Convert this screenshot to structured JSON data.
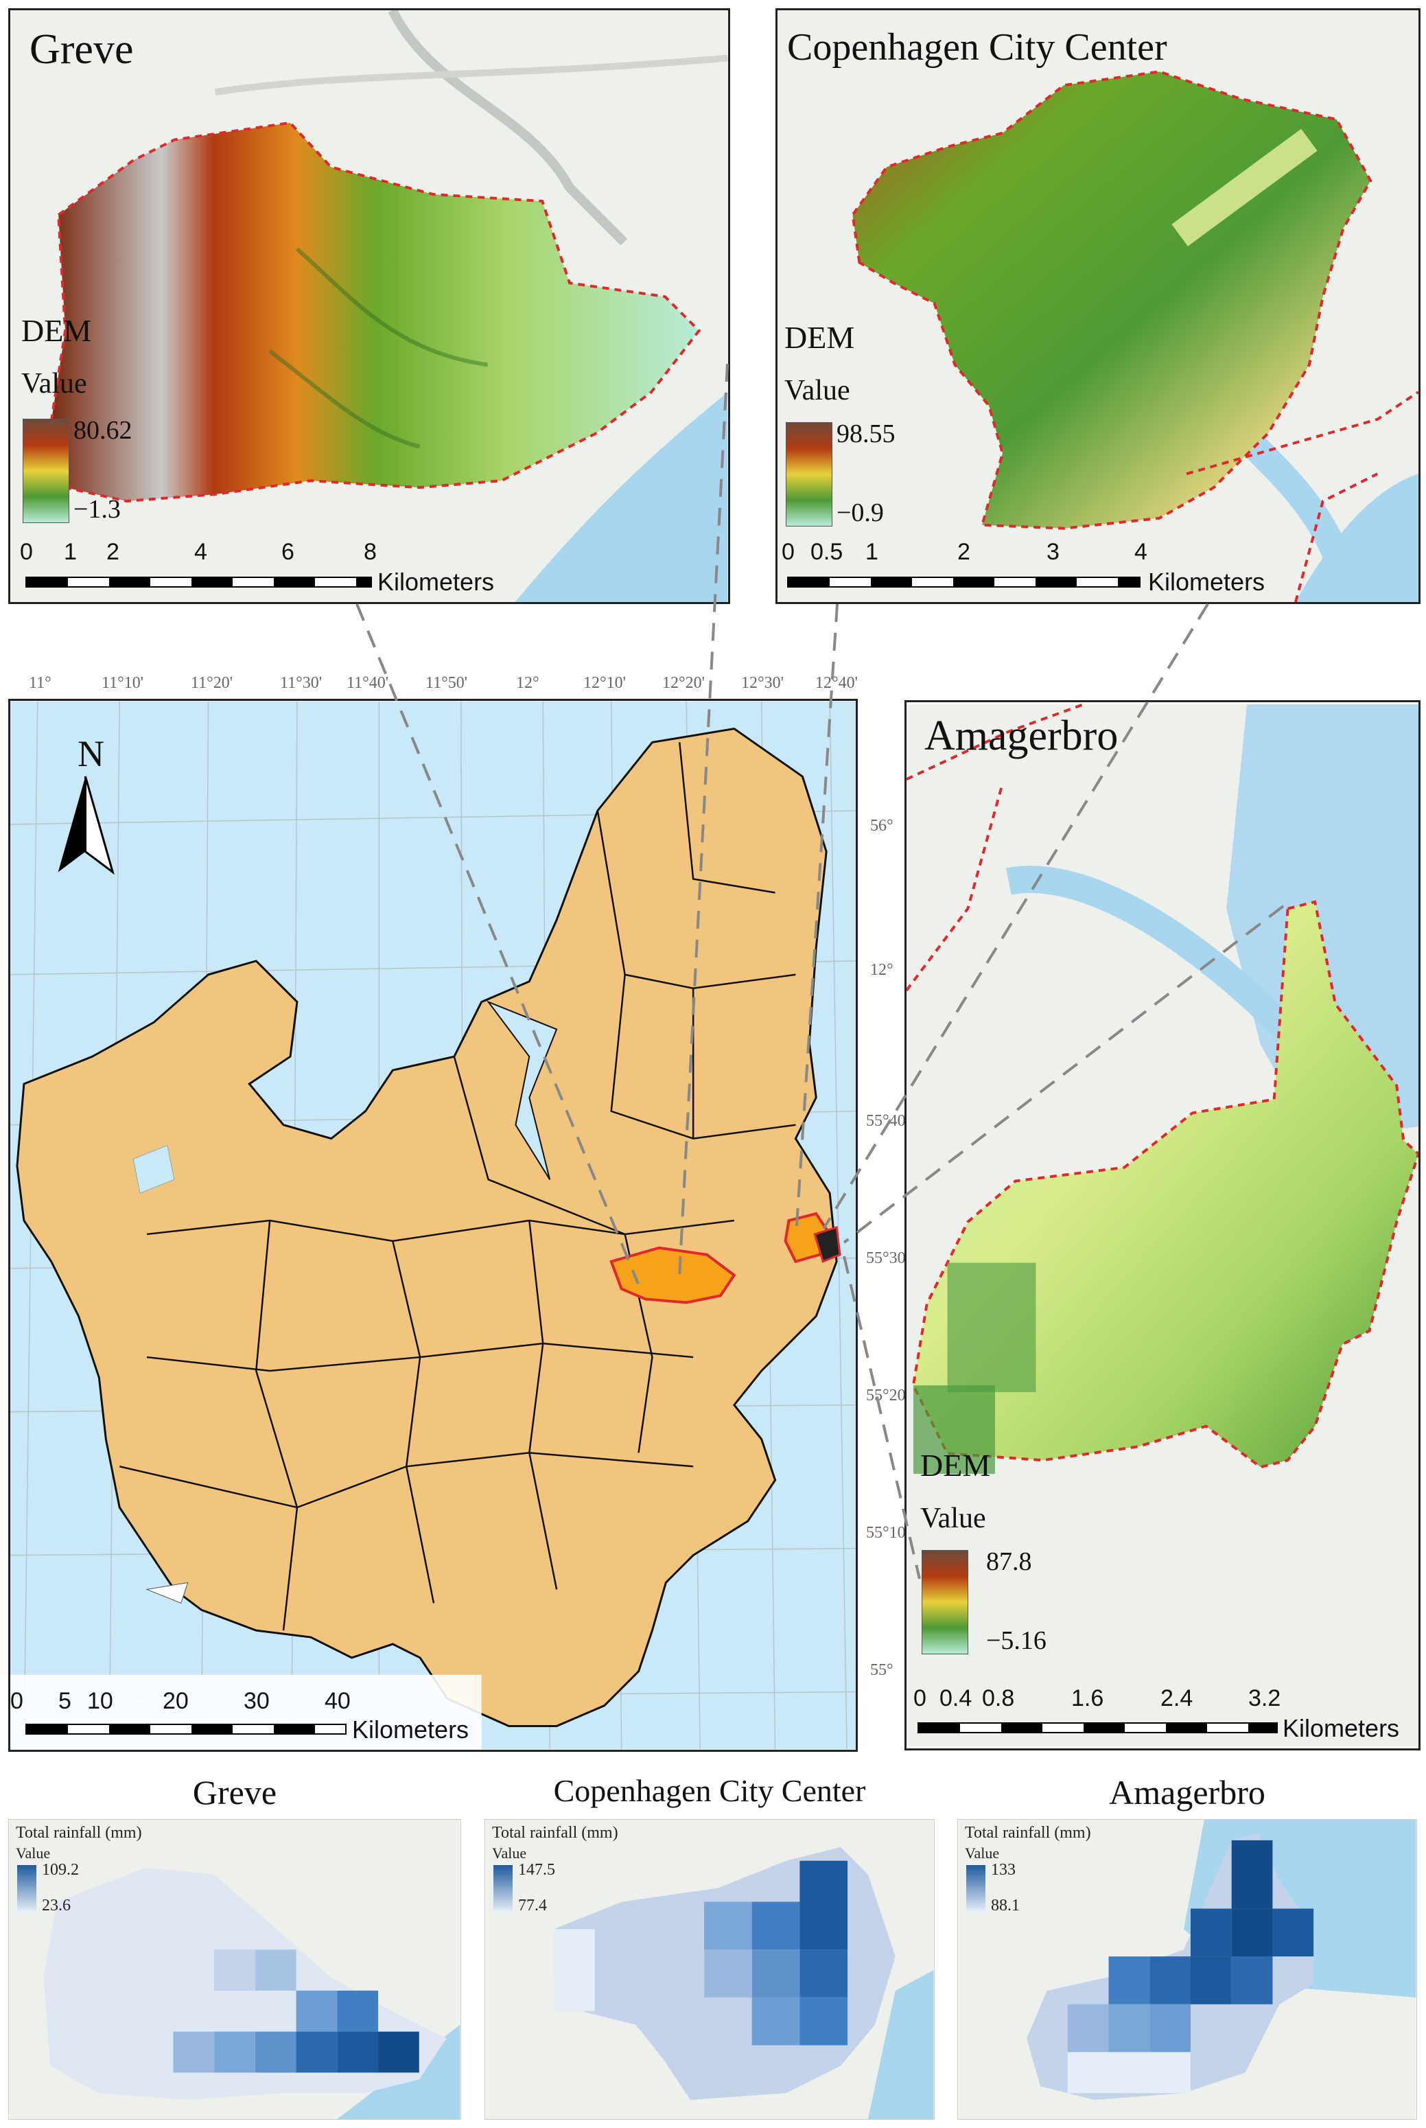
{
  "panels": {
    "greve": {
      "title": "Greve",
      "dem_label": "DEM",
      "value_label": "Value",
      "max": "80.62",
      "min": "−1.3",
      "scale_ticks": [
        "0",
        "1",
        "2",
        "4",
        "6",
        "8"
      ],
      "scale_unit": "Kilometers"
    },
    "copenhagen": {
      "title": "Copenhagen City Center",
      "dem_label": "DEM",
      "value_label": "Value",
      "max": "98.55",
      "min": "−0.9",
      "scale_ticks": [
        "0",
        "0.5",
        "1",
        "2",
        "3",
        "4"
      ],
      "scale_unit": "Kilometers"
    },
    "amagerbro": {
      "title": "Amagerbro",
      "dem_label": "DEM",
      "value_label": "Value",
      "max": "87.8",
      "min": "−5.16",
      "scale_ticks": [
        "0",
        "0.4",
        "0.8",
        "1.6",
        "2.4",
        "3.2"
      ],
      "scale_unit": "Kilometers"
    },
    "overview": {
      "north": "N",
      "scale_ticks": [
        "0",
        "5",
        "10",
        "20",
        "30",
        "40"
      ],
      "scale_unit": "Kilometers",
      "lon_labels": [
        "11°",
        "11°10'",
        "11°20'",
        "11°30'",
        "11°40'",
        "11°50'",
        "12°",
        "12°10'",
        "12°20'",
        "12°30'",
        "12°40'"
      ],
      "lat_labels": [
        "56°",
        "12°",
        "55°40'",
        "55°30'",
        "55°20'",
        "55°10'",
        "55°"
      ]
    }
  },
  "rainfall": {
    "greve": {
      "title": "Greve",
      "label": "Total rainfall (mm)",
      "value_label": "Value",
      "max": "109.2",
      "min": "23.6"
    },
    "copenhagen": {
      "title": "Copenhagen City Center",
      "label": "Total rainfall (mm)",
      "value_label": "Value",
      "max": "147.5",
      "min": "77.4"
    },
    "amagerbro": {
      "title": "Amagerbro",
      "label": "Total rainfall (mm)",
      "value_label": "Value",
      "max": "133",
      "min": "88.1"
    }
  },
  "colors": {
    "sea": "#c9e8f8",
    "land": "#f2c57f",
    "highlight": "#f7a21b",
    "boundary": "#e0292b"
  }
}
